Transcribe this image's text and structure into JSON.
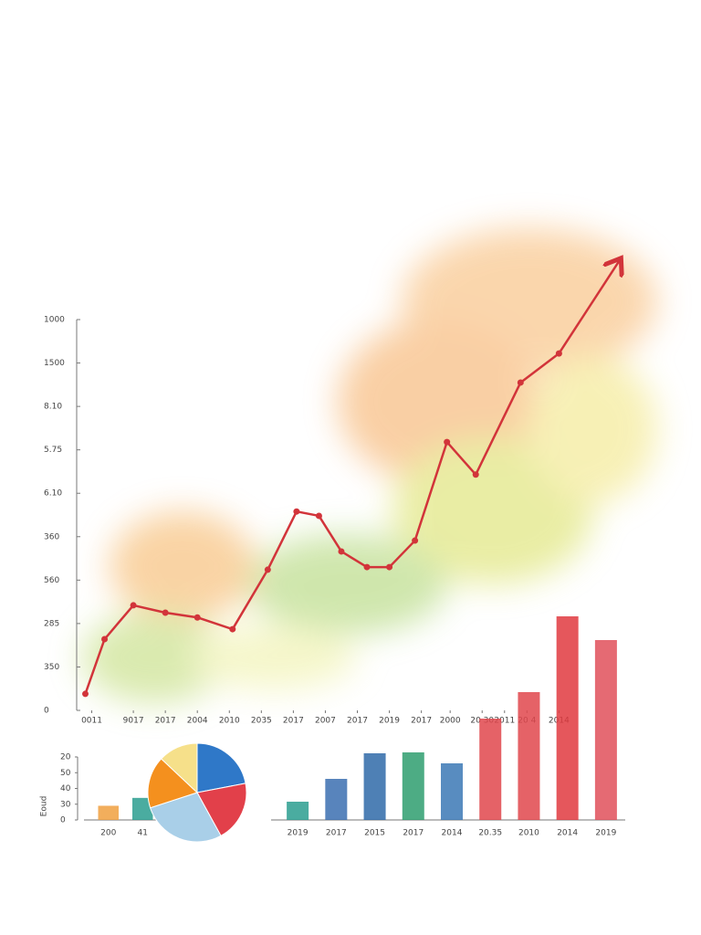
{
  "chart_data": [
    {
      "type": "line",
      "xlim": [
        0,
        17
      ],
      "xticks": [
        {
          "value": 0.3,
          "label": "0011"
        },
        {
          "value": 1.6,
          "label": "9017"
        },
        {
          "value": 2.6,
          "label": "2017"
        },
        {
          "value": 3.6,
          "label": "2004"
        },
        {
          "value": 4.6,
          "label": "2010"
        },
        {
          "value": 5.6,
          "label": "2035"
        },
        {
          "value": 6.6,
          "label": "2017"
        },
        {
          "value": 7.6,
          "label": "2007"
        },
        {
          "value": 8.6,
          "label": "2017"
        },
        {
          "value": 9.6,
          "label": "2019"
        },
        {
          "value": 10.6,
          "label": "2017"
        },
        {
          "value": 11.5,
          "label": "2000"
        },
        {
          "value": 12.5,
          "label": "20 30"
        },
        {
          "value": 13.2,
          "label": "2011"
        },
        {
          "value": 13.9,
          "label": "20 4"
        },
        {
          "value": 14.9,
          "label": "2014"
        }
      ],
      "ylim": [
        0,
        900
      ],
      "yticks": [
        0,
        {
          "value": 100,
          "label": "350"
        },
        {
          "value": 200,
          "label": "285"
        },
        {
          "value": 300,
          "label": "560"
        },
        {
          "value": 400,
          "label": "360"
        },
        {
          "value": 500,
          "label": "6.10"
        },
        {
          "value": 600,
          "label": "5.75"
        },
        {
          "value": 700,
          "label": "8.10"
        },
        {
          "value": 800,
          "label": "1500"
        },
        {
          "value": 900,
          "label": "1000"
        }
      ],
      "series": [
        {
          "color": "#d2343a",
          "x": [
            0.1,
            0.7,
            1.6,
            2.6,
            3.6,
            4.7,
            5.8,
            6.7,
            7.4,
            8.1,
            8.9,
            9.6,
            10.4,
            11.4,
            12.3,
            13.7,
            14.9,
            16.8
          ],
          "values": [
            38,
            164,
            242,
            225,
            214,
            187,
            324,
            458,
            448,
            366,
            330,
            330,
            391,
            618,
            543,
            755,
            822,
            1037
          ]
        }
      ]
    },
    {
      "type": "bar",
      "ylabel": "Eoud",
      "categories": [
        "200",
        "41"
      ],
      "values": [
        0.9,
        1.4
      ],
      "colors": [
        "#f0a040",
        "#2a9d8f"
      ],
      "ylim": [
        0,
        4
      ],
      "yticks": [
        0,
        {
          "value": 1,
          "label": "30"
        },
        {
          "value": 2,
          "label": "40"
        },
        {
          "value": 3,
          "label": "50"
        },
        {
          "value": 4,
          "label": "20"
        }
      ]
    },
    {
      "type": "pie",
      "values": [
        22,
        20,
        28,
        17,
        13
      ],
      "colors": [
        "#2f78c8",
        "#e2404a",
        "#a9cfe8",
        "#f4901e",
        "#f6e08a"
      ]
    },
    {
      "type": "bar",
      "categories": [
        "2019",
        "2017",
        "2015",
        "2017",
        "2014",
        "20.35",
        "2010",
        "2014",
        "2019"
      ],
      "values": [
        20,
        45,
        73,
        74,
        62,
        111,
        140,
        223,
        197
      ],
      "colors": [
        "#2a9d8f",
        "#3b6fb0",
        "#2f6aa8",
        "#2e9e6e",
        "#3b78b5",
        "#e0474c",
        "#e0474c",
        "#e03a40",
        "#e0505a"
      ],
      "ylim": [
        0,
        230
      ]
    }
  ]
}
